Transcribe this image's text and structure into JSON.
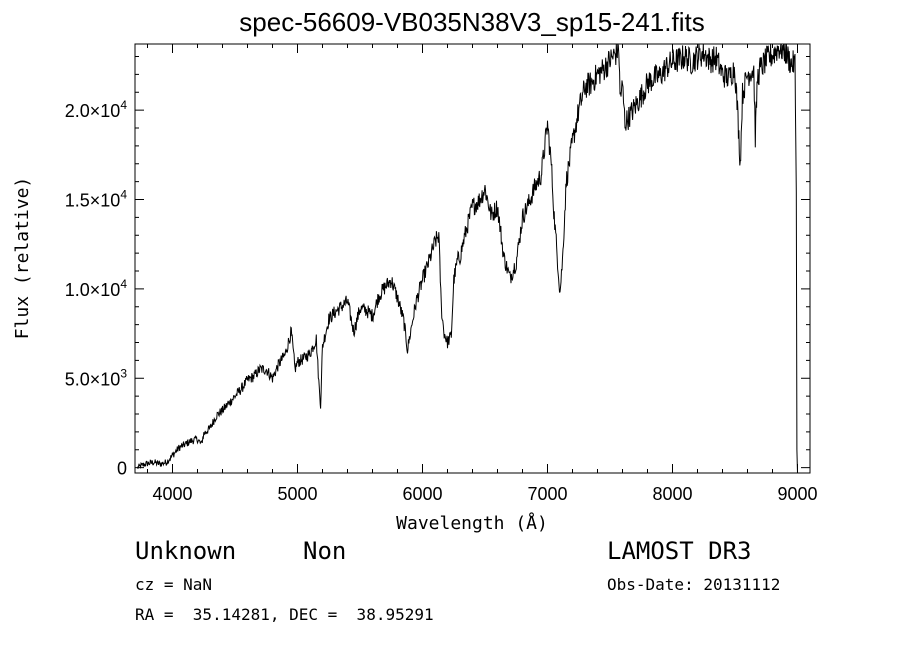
{
  "chart_data": {
    "type": "line",
    "title": "spec-56609-VB035N38V3_sp15-241.fits",
    "xlabel": "Wavelength (Å)",
    "ylabel": "Flux (relative)",
    "xlim": [
      3700,
      9100
    ],
    "ylim": [
      -300,
      23700
    ],
    "xticks": [
      4000,
      5000,
      6000,
      7000,
      8000,
      9000
    ],
    "xtick_labels": [
      "4000",
      "5000",
      "6000",
      "7000",
      "8000",
      "9000"
    ],
    "yticks": [
      0,
      5000,
      10000,
      15000,
      20000
    ],
    "ytick_labels": [
      {
        "mantissa": "0",
        "exp": ""
      },
      {
        "mantissa": "5.0×10",
        "exp": "3"
      },
      {
        "mantissa": "1.0×10",
        "exp": "4"
      },
      {
        "mantissa": "1.5×10",
        "exp": "4"
      },
      {
        "mantissa": "2.0×10",
        "exp": "4"
      }
    ],
    "grid": false,
    "series": [
      {
        "name": "flux",
        "color": "#000000",
        "x": [
          3720,
          3780,
          3850,
          3900,
          3950,
          3990,
          4050,
          4100,
          4150,
          4200,
          4230,
          4250,
          4300,
          4350,
          4400,
          4450,
          4500,
          4550,
          4600,
          4650,
          4700,
          4750,
          4800,
          4850,
          4900,
          4950,
          4980,
          5000,
          5050,
          5100,
          5150,
          5170,
          5185,
          5200,
          5250,
          5300,
          5350,
          5400,
          5450,
          5500,
          5550,
          5600,
          5650,
          5700,
          5750,
          5800,
          5850,
          5880,
          5895,
          5920,
          5950,
          6000,
          6050,
          6100,
          6130,
          6150,
          6170,
          6200,
          6230,
          6250,
          6280,
          6300,
          6350,
          6400,
          6450,
          6500,
          6550,
          6600,
          6650,
          6700,
          6750,
          6800,
          6850,
          6900,
          6950,
          7000,
          7030,
          7050,
          7100,
          7120,
          7150,
          7200,
          7250,
          7300,
          7350,
          7400,
          7450,
          7500,
          7550,
          7570,
          7580,
          7600,
          7620,
          7650,
          7700,
          7750,
          7800,
          7850,
          7900,
          7950,
          8000,
          8050,
          8100,
          8150,
          8200,
          8250,
          8300,
          8350,
          8400,
          8450,
          8498,
          8520,
          8542,
          8560,
          8600,
          8650,
          8662,
          8680,
          8700,
          8750,
          8800,
          8850,
          8900,
          8950,
          8980,
          8990,
          8995
        ],
        "y": [
          0,
          200,
          300,
          200,
          300,
          600,
          1100,
          1300,
          1500,
          1600,
          1300,
          1900,
          2200,
          2900,
          3200,
          3600,
          4000,
          4400,
          4900,
          5100,
          5500,
          5500,
          5000,
          5800,
          6300,
          7600,
          5500,
          5900,
          6100,
          6400,
          7200,
          4800,
          3500,
          6800,
          8300,
          8700,
          9000,
          9300,
          7600,
          8900,
          8800,
          8500,
          9600,
          10100,
          10500,
          9500,
          8200,
          6600,
          7200,
          8200,
          9300,
          10500,
          11500,
          12600,
          13000,
          9000,
          7600,
          7000,
          7400,
          10500,
          11600,
          11800,
          13300,
          14600,
          14900,
          15600,
          14100,
          14600,
          11800,
          10600,
          11500,
          14000,
          14800,
          15700,
          16400,
          19200,
          17000,
          14400,
          9800,
          11600,
          16000,
          18200,
          20000,
          21300,
          21500,
          22000,
          22300,
          22800,
          23200,
          23600,
          20800,
          21300,
          19300,
          19600,
          20200,
          20800,
          21500,
          21800,
          21900,
          22400,
          22700,
          22800,
          23000,
          22700,
          23000,
          23200,
          22800,
          22900,
          22000,
          21800,
          22400,
          20000,
          17000,
          20900,
          22000,
          22300,
          18500,
          21800,
          22300,
          22800,
          23100,
          23500,
          23300,
          22600,
          22600,
          16000,
          1000
        ]
      }
    ]
  },
  "footer": {
    "object_type": "Unknown",
    "object_class": "Non",
    "survey": "LAMOST DR3",
    "cz": "cz = NaN",
    "obs_date": "Obs-Date: 20131112",
    "coords": "RA =  35.14281, DEC =  38.95291"
  }
}
